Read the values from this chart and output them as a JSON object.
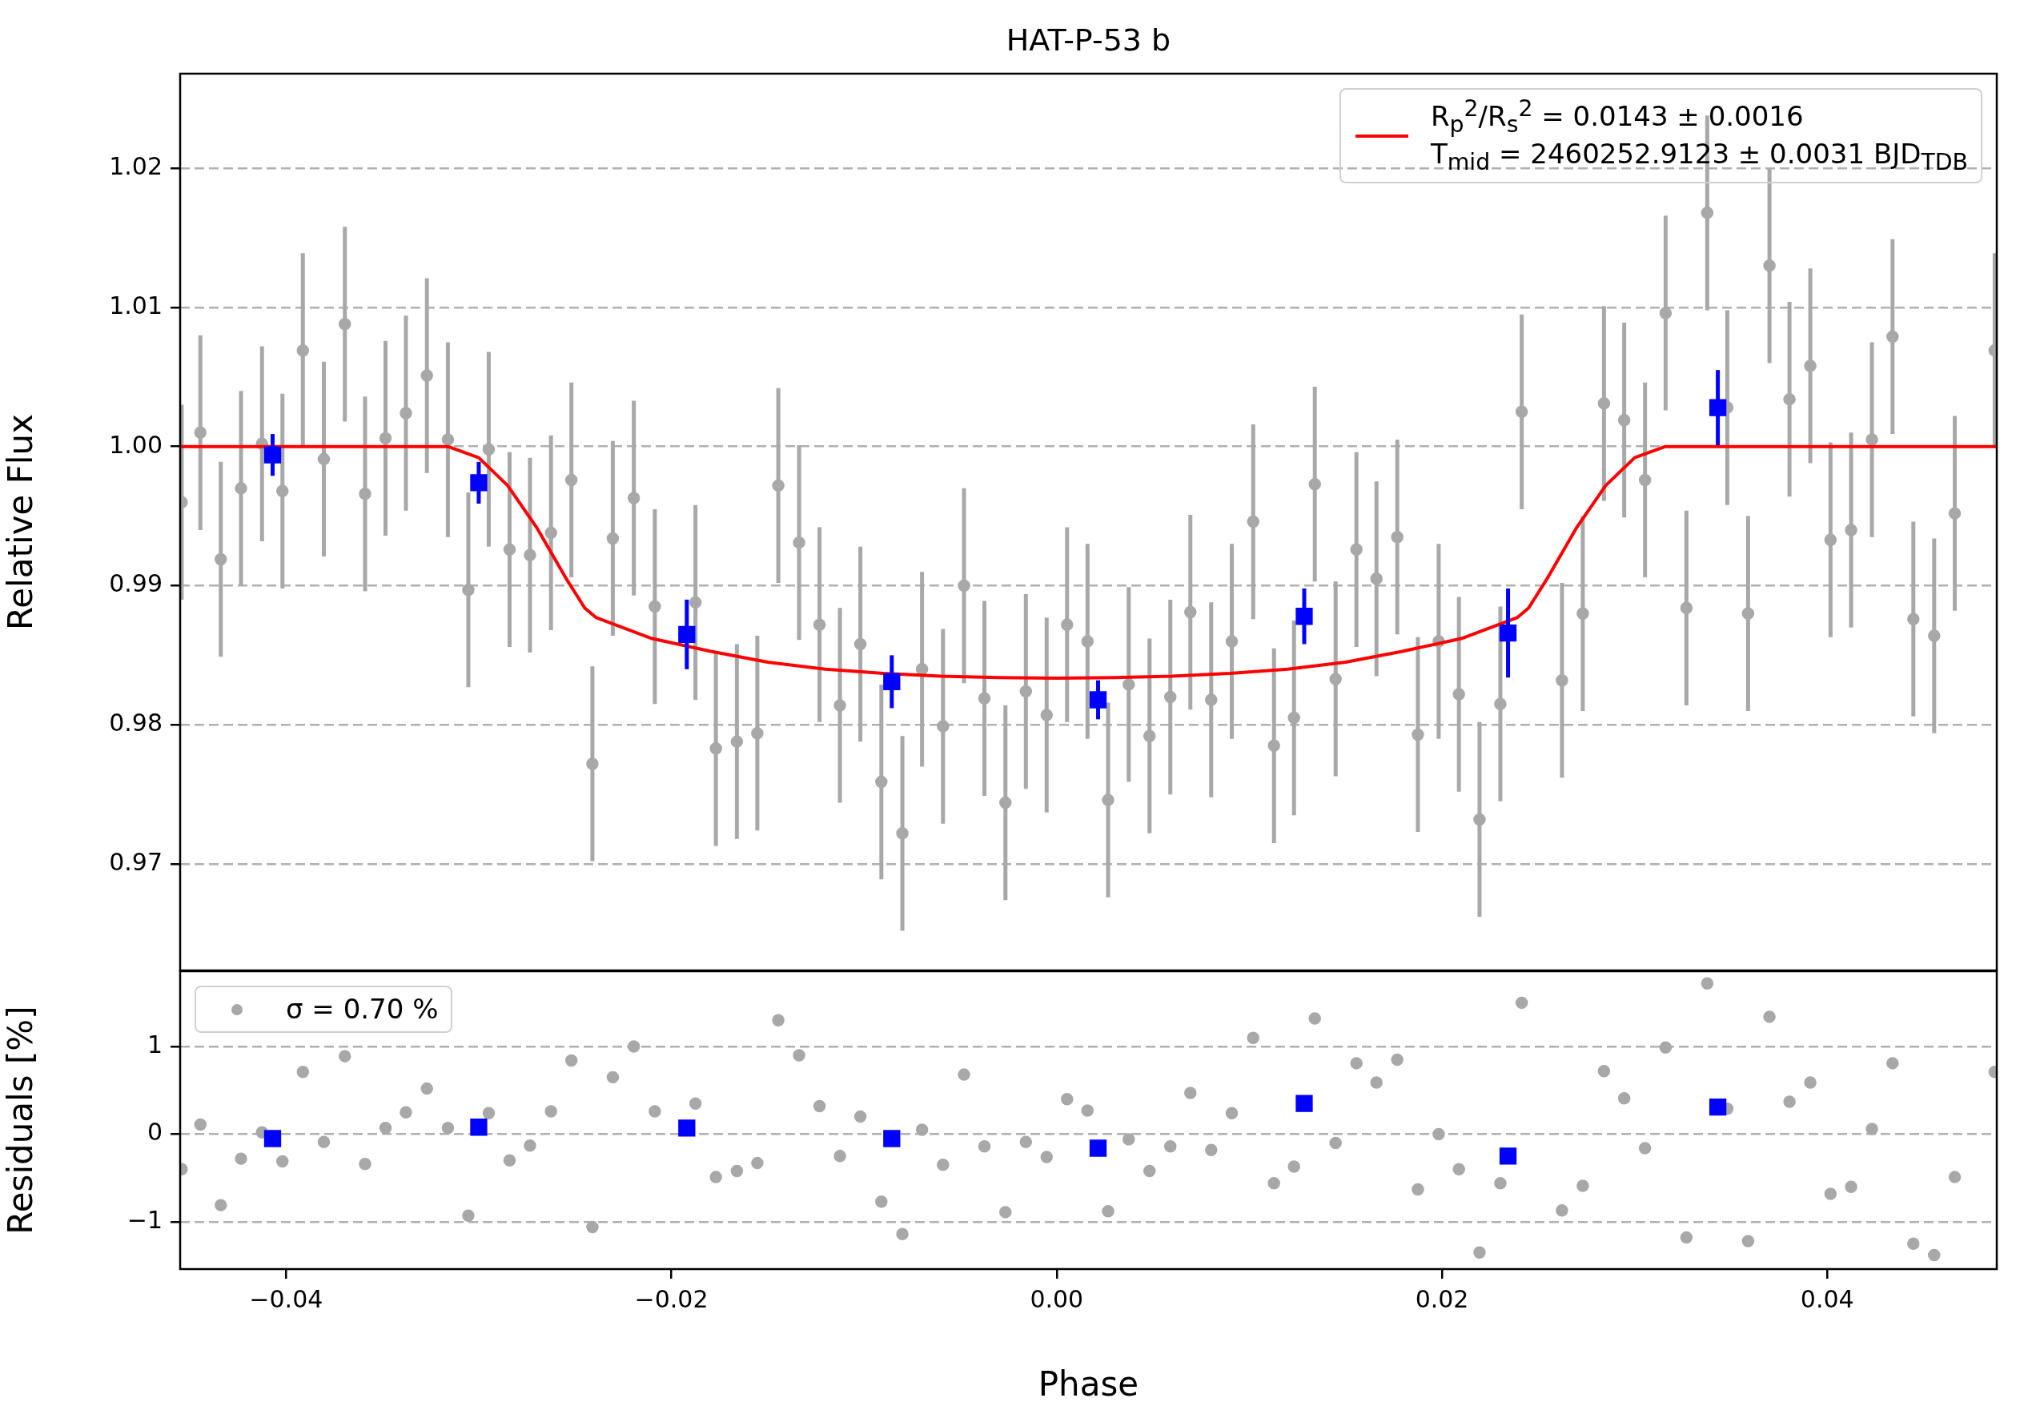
{
  "chart_data": [
    {
      "type": "scatter",
      "title": "HAT-P-53 b",
      "ylabel": "Relative Flux",
      "xlim": [
        -0.0455,
        0.0488
      ],
      "ylim": [
        0.96235,
        1.0268
      ],
      "yticks": [
        0.97,
        0.98,
        0.99,
        {
          "value": 1,
          "label": "1.00"
        },
        1.01,
        1.02
      ],
      "grid": "y",
      "legend": "top right",
      "tick_labels": "y",
      "series": [
        {
          "type": "scatter",
          "color": "#a8a8a8",
          "marker": "circle",
          "x": [
            -0.04542,
            -0.04445,
            -0.04339,
            -0.04234,
            -0.04125,
            -0.04019,
            -0.03913,
            -0.03804,
            -0.03695,
            -0.0359,
            -0.03484,
            -0.03378,
            -0.03269,
            -0.0316,
            -0.03054,
            -0.02948,
            -0.0284,
            -0.02734,
            -0.02625,
            -0.02519,
            -0.0241,
            -0.02304,
            -0.02195,
            -0.02086,
            -0.01875,
            -0.01769,
            -0.0166,
            -0.01554,
            -0.01445,
            -0.01337,
            -0.01231,
            -0.01125,
            -0.01019,
            -0.0091,
            -0.00801,
            -0.00699,
            -0.0059,
            -0.00481,
            -0.00375,
            -0.00266,
            -0.0016,
            -0.00052,
            0.00054,
            0.0016,
            0.00267,
            0.00374,
            0.00482,
            0.0059,
            0.00694,
            0.00802,
            0.00909,
            0.0102,
            0.01128,
            0.01232,
            0.0134,
            0.01448,
            0.01556,
            0.0166,
            0.01768,
            0.01875,
            0.01983,
            0.02088,
            0.02195,
            0.02303,
            0.02414,
            0.02623,
            0.02731,
            0.02841,
            0.02946,
            0.03054,
            0.03161,
            0.03269,
            0.03377,
            0.03481,
            0.03589,
            0.037,
            0.03804,
            0.03912,
            0.04017,
            0.04124,
            0.04232,
            0.04339,
            0.04447,
            0.04555,
            0.04662,
            0.04869
          ],
          "values": [
            0.996,
            1.001,
            0.9919,
            0.997,
            1.0002,
            0.9968,
            1.0069,
            0.9991,
            1.0088,
            0.9966,
            1.0006,
            1.0024,
            1.0051,
            1.0005,
            0.9897,
            0.9998,
            0.9926,
            0.9922,
            0.9938,
            0.9976,
            0.9772,
            0.9934,
            0.9963,
            0.9885,
            0.9888,
            0.9783,
            0.9788,
            0.9794,
            0.9972,
            0.9931,
            0.9872,
            0.9814,
            0.9858,
            0.9759,
            0.9722,
            0.984,
            0.9799,
            0.99,
            0.9819,
            0.9744,
            0.9824,
            0.9807,
            0.9872,
            0.986,
            0.9746,
            0.9829,
            0.9792,
            0.982,
            0.9881,
            0.9818,
            0.986,
            0.9946,
            0.9785,
            0.9805,
            0.9973,
            0.9833,
            0.9926,
            0.9905,
            0.9935,
            0.9793,
            0.986,
            0.9822,
            0.9732,
            0.9815,
            1.0025,
            0.9832,
            0.988,
            1.0031,
            1.0019,
            0.9976,
            1.0096,
            0.9884,
            1.0168,
            1.0028,
            0.988,
            1.013,
            1.0034,
            1.0058,
            0.9933,
            0.994,
            1.0005,
            1.0079,
            0.9876,
            0.9864,
            0.9952,
            1.0069
          ],
          "errors": [
            0.007,
            0.007,
            0.007,
            0.007,
            0.007,
            0.007,
            0.007,
            0.007,
            0.007,
            0.007,
            0.007,
            0.007,
            0.007,
            0.007,
            0.007,
            0.007,
            0.007,
            0.007,
            0.007,
            0.007,
            0.007,
            0.007,
            0.007,
            0.007,
            0.007,
            0.007,
            0.007,
            0.007,
            0.007,
            0.007,
            0.007,
            0.007,
            0.007,
            0.007,
            0.007,
            0.007,
            0.007,
            0.007,
            0.007,
            0.007,
            0.007,
            0.007,
            0.007,
            0.007,
            0.007,
            0.007,
            0.007,
            0.007,
            0.007,
            0.007,
            0.007,
            0.007,
            0.007,
            0.007,
            0.007,
            0.007,
            0.007,
            0.007,
            0.007,
            0.007,
            0.007,
            0.007,
            0.007,
            0.007,
            0.007,
            0.007,
            0.007,
            0.007,
            0.007,
            0.007,
            0.007,
            0.007,
            0.007,
            0.007,
            0.007,
            0.007,
            0.007,
            0.007,
            0.007,
            0.007,
            0.007,
            0.007,
            0.007,
            0.007,
            0.007,
            0.007
          ]
        },
        {
          "type": "line",
          "name": "R$_{p}$$^{2}$/R$_{s}$$^{2}$ = 0.0143 ± 0.0016\nT$_{mid}$ = 2460252.9123 ± 0.0031 BJD$_{TDB}$",
          "color": "#ff0000",
          "marker": "none",
          "line_style": "solid",
          "x": [
            -0.0455,
            -0.0316,
            -0.03,
            -0.0285,
            -0.027,
            -0.0255,
            -0.0245,
            -0.0239,
            -0.021,
            -0.018,
            -0.015,
            -0.012,
            -0.009,
            -0.006,
            -0.003,
            0,
            0.003,
            0.006,
            0.009,
            0.012,
            0.015,
            0.018,
            0.021,
            0.0239,
            0.0245,
            0.0255,
            0.027,
            0.0285,
            0.03,
            0.0316,
            0.0488
          ],
          "values": [
            1,
            1,
            0.9992,
            0.9972,
            0.9942,
            0.9906,
            0.9884,
            0.9877,
            0.9862,
            0.9853,
            0.9845,
            0.984,
            0.9837,
            0.9835,
            0.9834,
            0.98335,
            0.9834,
            0.9835,
            0.9837,
            0.984,
            0.9845,
            0.9853,
            0.9862,
            0.9877,
            0.9884,
            0.9906,
            0.9942,
            0.9972,
            0.9992,
            1,
            1
          ]
        },
        {
          "type": "scatter",
          "color": "#0000ff",
          "marker": "square",
          "x": [
            -0.0407,
            -0.03,
            -0.0192,
            -0.00856,
            0.00215,
            0.01285,
            0.02343,
            0.03432
          ],
          "values": [
            0.9994,
            0.9974,
            0.9865,
            0.9831,
            0.9818,
            0.9878,
            0.9866,
            1.0028
          ],
          "errors": [
            0.0015,
            0.0015,
            0.0025,
            0.0019,
            0.0014,
            0.002,
            0.0032,
            0.0027
          ]
        }
      ]
    },
    {
      "type": "scatter",
      "xlabel": "Phase",
      "ylabel": "Residuals [%]",
      "xlim": [
        -0.0455,
        0.0488
      ],
      "ylim": [
        -1.54,
        1.86
      ],
      "xticks": [
        {
          "value": -0.04,
          "label": "−0.04"
        },
        {
          "value": -0.02,
          "label": "−0.02"
        },
        {
          "value": 0,
          "label": "0.00"
        },
        0.02,
        0.04
      ],
      "yticks": [
        {
          "value": -1,
          "label": "−1"
        },
        0,
        1
      ],
      "grid": "y",
      "legend": "top left",
      "series": [
        {
          "type": "scatter",
          "name": "σ = 0.70 %",
          "color": "#a8a8a8",
          "marker": "circle",
          "x": [
            -0.04542,
            -0.04445,
            -0.04339,
            -0.04234,
            -0.04125,
            -0.04019,
            -0.03913,
            -0.03804,
            -0.03695,
            -0.0359,
            -0.03484,
            -0.03378,
            -0.03269,
            -0.0316,
            -0.03054,
            -0.02948,
            -0.0284,
            -0.02734,
            -0.02625,
            -0.02519,
            -0.0241,
            -0.02304,
            -0.02195,
            -0.02086,
            -0.01875,
            -0.01769,
            -0.0166,
            -0.01554,
            -0.01445,
            -0.01337,
            -0.01231,
            -0.01125,
            -0.01019,
            -0.0091,
            -0.00801,
            -0.00699,
            -0.0059,
            -0.00481,
            -0.00375,
            -0.00266,
            -0.0016,
            -0.00052,
            0.00054,
            0.0016,
            0.00267,
            0.00374,
            0.00482,
            0.0059,
            0.00694,
            0.00802,
            0.00909,
            0.0102,
            0.01128,
            0.01232,
            0.0134,
            0.01448,
            0.01556,
            0.0166,
            0.01768,
            0.01875,
            0.01983,
            0.02088,
            0.02195,
            0.02303,
            0.02414,
            0.02623,
            0.02731,
            0.02841,
            0.02946,
            0.03054,
            0.03161,
            0.03269,
            0.03377,
            0.03481,
            0.03589,
            0.037,
            0.03804,
            0.03912,
            0.04017,
            0.04124,
            0.04232,
            0.04339,
            0.04447,
            0.04555,
            0.04662,
            0.04869
          ],
          "values": [
            -0.4,
            0.11,
            -0.81,
            -0.28,
            0.02,
            -0.31,
            0.71,
            -0.09,
            0.89,
            -0.34,
            0.07,
            0.25,
            0.52,
            0.07,
            -0.93,
            0.24,
            -0.3,
            -0.13,
            0.26,
            0.84,
            -1.06,
            0.65,
            1.0,
            0.26,
            0.35,
            -0.49,
            -0.42,
            -0.33,
            1.3,
            0.9,
            0.32,
            -0.25,
            0.2,
            -0.77,
            -1.14,
            0.05,
            -0.35,
            0.68,
            -0.14,
            -0.89,
            -0.09,
            -0.26,
            0.4,
            0.27,
            -0.88,
            -0.06,
            -0.42,
            -0.14,
            0.47,
            -0.18,
            0.24,
            1.1,
            -0.56,
            -0.37,
            1.32,
            -0.1,
            0.81,
            0.59,
            0.85,
            -0.63,
            0.0,
            -0.4,
            -1.35,
            -0.56,
            1.5,
            -0.87,
            -0.59,
            0.72,
            0.41,
            -0.16,
            0.99,
            -1.18,
            1.72,
            0.29,
            -1.22,
            1.34,
            0.37,
            0.59,
            -0.68,
            -0.6,
            0.06,
            0.81,
            -1.25,
            -1.38,
            -0.49,
            0.71
          ]
        },
        {
          "type": "scatter",
          "color": "#0000ff",
          "marker": "square",
          "x": [
            -0.0407,
            -0.03,
            -0.0192,
            -0.00856,
            0.00215,
            0.01285,
            0.02343,
            0.03432
          ],
          "values": [
            -0.05,
            0.08,
            0.07,
            -0.05,
            -0.16,
            0.35,
            -0.25,
            0.31
          ]
        }
      ]
    }
  ]
}
